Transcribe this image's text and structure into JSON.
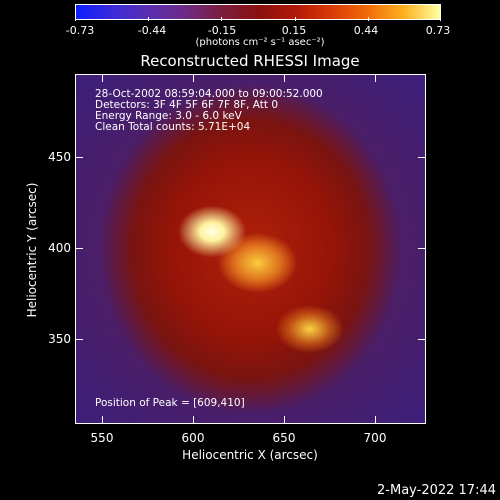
{
  "colorbar": {
    "ticks": [
      "-0.73",
      "-0.44",
      "-0.15",
      "0.15",
      "0.44",
      "0.73"
    ],
    "unit": "(photons cm⁻² s⁻¹ asec⁻²)",
    "range": [
      -0.73,
      0.73
    ],
    "colors": [
      "#0a1fff",
      "#7a1e3e",
      "#8a1010",
      "#f06a08",
      "#ffffa0"
    ]
  },
  "plot": {
    "title": "Reconstructed RHESSI Image",
    "info_lines": [
      "28-Oct-2002 08:59:04.000 to 09:00:52.000",
      "Detectors: 3F 4F 5F 6F 7F 8F, Att 0",
      "Energy Range: 3.0 - 6.0 keV",
      "Clean    Total counts: 5.71E+04"
    ],
    "peak_text": "Position of Peak = [609,410]",
    "x_axis_label": "Heliocentric X (arcsec)",
    "y_axis_label": "Heliocentric Y (arcsec)",
    "x_ticks": [
      "550",
      "600",
      "650",
      "700"
    ],
    "y_ticks": [
      "450",
      "400",
      "350"
    ]
  },
  "chart_data": {
    "type": "heatmap",
    "title": "Reconstructed RHESSI Image",
    "xlabel": "Heliocentric X (arcsec)",
    "ylabel": "Heliocentric Y (arcsec)",
    "xlim": [
      535,
      725
    ],
    "ylim": [
      300,
      490
    ],
    "zlim": [
      -0.73,
      0.73
    ],
    "peak": [
      609,
      410
    ],
    "annotations": [
      "28-Oct-2002 08:59:04.000 to 09:00:52.000",
      "Detectors: 3F 4F 5F 6F 7F 8F, Att 0",
      "Energy Range: 3.0 - 6.0 keV",
      "Clean    Total counts: 5.71E+04",
      "Position of Peak = [609,410]"
    ]
  },
  "footer": {
    "timestamp": "2-May-2022 17:44"
  }
}
